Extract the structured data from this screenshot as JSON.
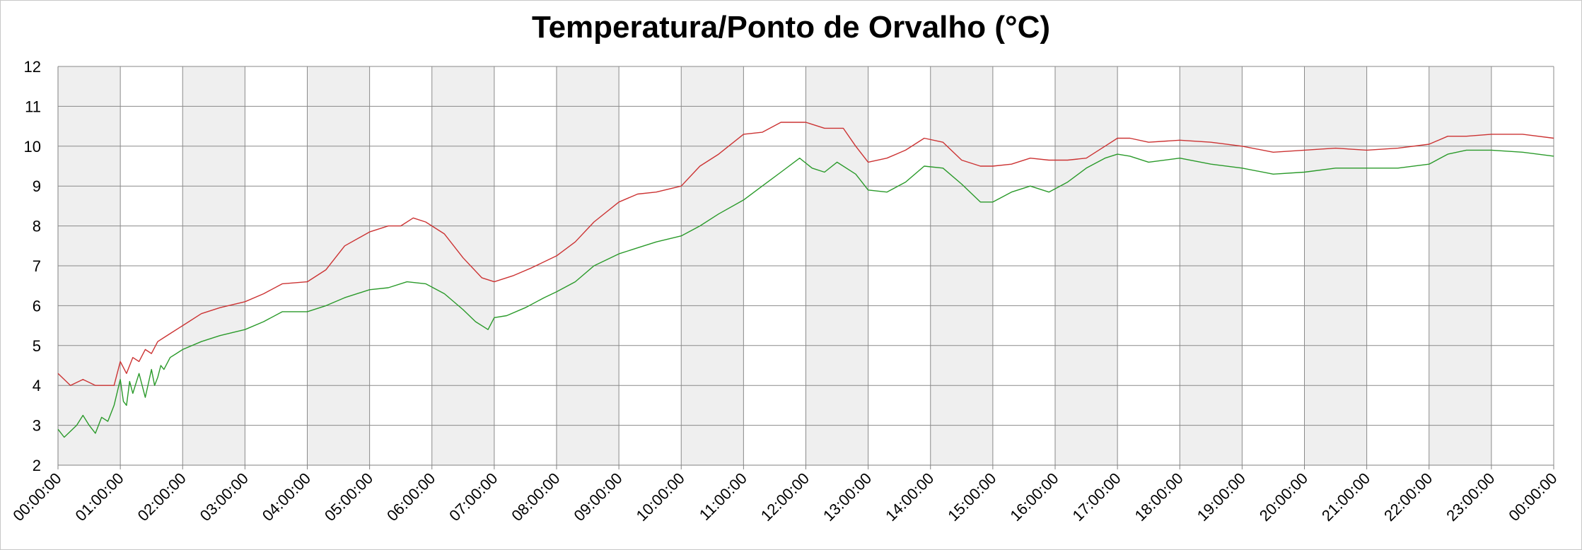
{
  "chart_data": {
    "type": "line",
    "title": "Temperatura/Ponto de Orvalho (°C)",
    "xlabel": "",
    "ylabel": "",
    "ylim": [
      2,
      12
    ],
    "yticks": [
      2,
      3,
      4,
      5,
      6,
      7,
      8,
      9,
      10,
      11,
      12
    ],
    "xlim": [
      0,
      24
    ],
    "xtick_labels": [
      "00:00:00",
      "01:00:00",
      "02:00:00",
      "03:00:00",
      "04:00:00",
      "05:00:00",
      "06:00:00",
      "07:00:00",
      "08:00:00",
      "09:00:00",
      "10:00:00",
      "11:00:00",
      "12:00:00",
      "13:00:00",
      "14:00:00",
      "15:00:00",
      "16:00:00",
      "17:00:00",
      "18:00:00",
      "19:00:00",
      "20:00:00",
      "21:00:00",
      "22:00:00",
      "23:00:00",
      "00:00:00"
    ],
    "grid": true,
    "alternating_hour_bands": true,
    "band_color": "#efefef",
    "series": [
      {
        "color": "#cc3333",
        "x": [
          0,
          0.2,
          0.4,
          0.6,
          0.8,
          0.9,
          1.0,
          1.1,
          1.2,
          1.3,
          1.4,
          1.5,
          1.6,
          1.7,
          1.8,
          2.0,
          2.3,
          2.6,
          3.0,
          3.3,
          3.6,
          4.0,
          4.3,
          4.6,
          5.0,
          5.3,
          5.5,
          5.7,
          5.9,
          6.2,
          6.5,
          6.8,
          7.0,
          7.3,
          7.6,
          8.0,
          8.3,
          8.6,
          9.0,
          9.3,
          9.6,
          10.0,
          10.3,
          10.6,
          11.0,
          11.3,
          11.6,
          12.0,
          12.3,
          12.6,
          12.8,
          13.0,
          13.3,
          13.6,
          13.9,
          14.2,
          14.5,
          14.8,
          15.0,
          15.3,
          15.6,
          15.9,
          16.2,
          16.5,
          16.8,
          17.0,
          17.2,
          17.5,
          18.0,
          18.5,
          19.0,
          19.5,
          20.0,
          20.5,
          21.0,
          21.5,
          22.0,
          22.3,
          22.6,
          23.0,
          23.5,
          24.0
        ],
        "y": [
          4.3,
          4.0,
          4.15,
          4.0,
          4.0,
          4.0,
          4.6,
          4.3,
          4.7,
          4.6,
          4.9,
          4.8,
          5.1,
          5.2,
          5.3,
          5.5,
          5.8,
          5.95,
          6.1,
          6.3,
          6.55,
          6.6,
          6.9,
          7.5,
          7.85,
          8.0,
          8.0,
          8.2,
          8.1,
          7.8,
          7.2,
          6.7,
          6.6,
          6.75,
          6.95,
          7.25,
          7.6,
          8.1,
          8.6,
          8.8,
          8.85,
          9.0,
          9.5,
          9.8,
          10.3,
          10.35,
          10.6,
          10.6,
          10.45,
          10.45,
          10.0,
          9.6,
          9.7,
          9.9,
          10.2,
          10.1,
          9.65,
          9.5,
          9.5,
          9.55,
          9.7,
          9.65,
          9.65,
          9.7,
          10.0,
          10.2,
          10.2,
          10.1,
          10.15,
          10.1,
          10.0,
          9.85,
          9.9,
          9.95,
          9.9,
          9.95,
          10.05,
          10.25,
          10.25,
          10.3,
          10.3,
          10.2
        ]
      },
      {
        "color": "#2a9a2a",
        "x": [
          0,
          0.1,
          0.3,
          0.4,
          0.5,
          0.6,
          0.7,
          0.8,
          0.9,
          1.0,
          1.05,
          1.1,
          1.15,
          1.2,
          1.3,
          1.4,
          1.5,
          1.55,
          1.6,
          1.65,
          1.7,
          1.8,
          1.9,
          2.0,
          2.3,
          2.6,
          3.0,
          3.3,
          3.6,
          4.0,
          4.3,
          4.6,
          5.0,
          5.3,
          5.6,
          5.9,
          6.2,
          6.5,
          6.7,
          6.9,
          7.0,
          7.2,
          7.5,
          7.8,
          8.0,
          8.3,
          8.6,
          9.0,
          9.3,
          9.6,
          10.0,
          10.3,
          10.6,
          11.0,
          11.3,
          11.6,
          11.9,
          12.1,
          12.3,
          12.5,
          12.8,
          13.0,
          13.3,
          13.6,
          13.9,
          14.2,
          14.5,
          14.8,
          15.0,
          15.3,
          15.6,
          15.9,
          16.2,
          16.5,
          16.8,
          17.0,
          17.2,
          17.5,
          18.0,
          18.5,
          19.0,
          19.5,
          20.0,
          20.5,
          21.0,
          21.5,
          22.0,
          22.3,
          22.6,
          23.0,
          23.5,
          24.0
        ],
        "y": [
          2.9,
          2.7,
          3.0,
          3.25,
          3.0,
          2.8,
          3.2,
          3.1,
          3.5,
          4.15,
          3.6,
          3.5,
          4.1,
          3.8,
          4.3,
          3.7,
          4.4,
          4.0,
          4.2,
          4.5,
          4.4,
          4.7,
          4.8,
          4.9,
          5.1,
          5.25,
          5.4,
          5.6,
          5.85,
          5.85,
          6.0,
          6.2,
          6.4,
          6.45,
          6.6,
          6.55,
          6.3,
          5.9,
          5.6,
          5.4,
          5.7,
          5.75,
          5.95,
          6.2,
          6.35,
          6.6,
          7.0,
          7.3,
          7.45,
          7.6,
          7.75,
          8.0,
          8.3,
          8.65,
          9.0,
          9.35,
          9.7,
          9.45,
          9.35,
          9.6,
          9.3,
          8.9,
          8.85,
          9.1,
          9.5,
          9.45,
          9.05,
          8.6,
          8.6,
          8.85,
          9.0,
          8.85,
          9.1,
          9.45,
          9.7,
          9.8,
          9.75,
          9.6,
          9.7,
          9.55,
          9.45,
          9.3,
          9.35,
          9.45,
          9.45,
          9.45,
          9.55,
          9.8,
          9.9,
          9.9,
          9.85,
          9.75
        ]
      }
    ]
  }
}
